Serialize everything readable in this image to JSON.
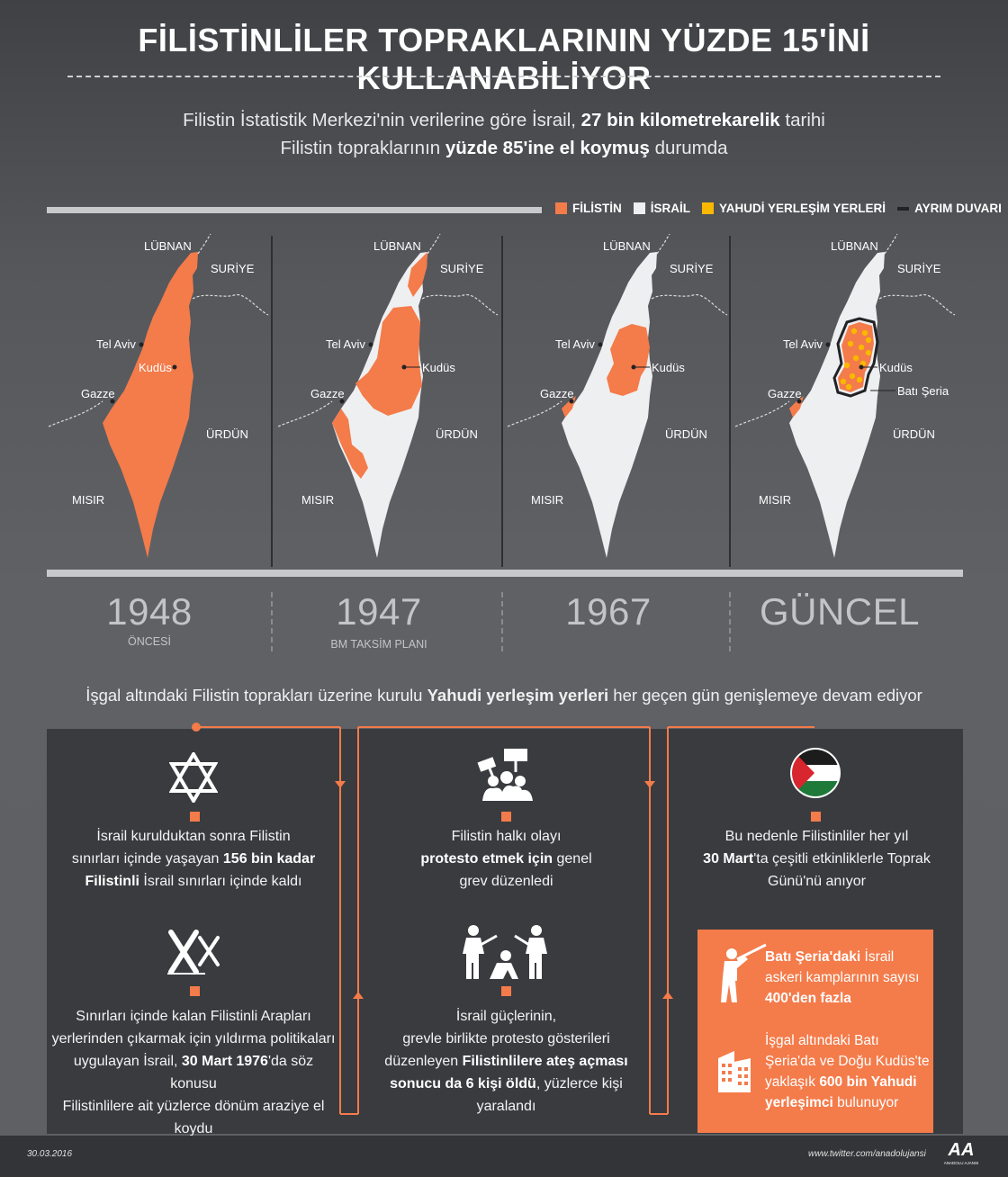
{
  "title": "FİLİSTİNLİLER TOPRAKLARININ YÜZDE 15'İNİ KULLANABİLİYOR",
  "intro": {
    "part1": "Filistin İstatistik Merkezi'nin verilerine göre İsrail, ",
    "bold1": "27 bin kilometrekarelik",
    "part2": " tarihi",
    "part3": "Filistin topraklarının ",
    "bold2": "yüzde 85'ine el koymuş",
    "part4": " durumda"
  },
  "legend": [
    {
      "label": "FİLİSTİN",
      "color": "#f47b4a"
    },
    {
      "label": "İSRAİL",
      "color": "#eeeff0"
    },
    {
      "label": "YAHUDİ YERLEŞİM YERLERİ",
      "color": "#f8b800"
    },
    {
      "label": "AYRIM DUVARI",
      "color": "#222326"
    }
  ],
  "map_labels": {
    "lubnan": "LÜBNAN",
    "suriye": "SURİYE",
    "tel_aviv": "Tel Aviv",
    "kudus": "Kudüs",
    "gazze": "Gazze",
    "urdun": "ÜRDÜN",
    "misir": "MISIR",
    "bati_seria": "Batı Şeria"
  },
  "periods": [
    {
      "year": "1948",
      "sub": "ÖNCESİ"
    },
    {
      "year": "1947",
      "sub": "BM TAKSİM PLANI"
    },
    {
      "year": "1967",
      "sub": ""
    },
    {
      "year": "GÜNCEL",
      "sub": ""
    }
  ],
  "settlement_line": {
    "part1": "İşgal altındaki Filistin toprakları üzerine kurulu ",
    "bold": "Yahudi yerleşim yerleri",
    "part2": " her geçen gün genişlemeye devam ediyor"
  },
  "timeline": {
    "col1_top": {
      "icon": "star-of-david-icon",
      "l1": "İsrail kurulduktan sonra Filistin",
      "l2": "sınırları içinde yaşayan ",
      "l2b": "156 bin kadar",
      "l3b": "Filistinli",
      "l3": " İsrail sınırları içinde kaldı"
    },
    "col1_bottom": {
      "icon": "barbed-wire-icon",
      "l1": "Sınırları içinde kalan Filistinli Arapları",
      "l2": "yerlerinden çıkarmak için yıldırma politikaları",
      "l3": "uygulayan İsrail, ",
      "l3b": "30 Mart 1976",
      "l3c": "'da söz konusu",
      "l4": "Filistinlilere ait yüzlerce dönüm araziye el",
      "l5": "koydu"
    },
    "col2_top": {
      "icon": "protest-icon",
      "l1": "Filistin halkı olayı",
      "l2b": "protesto etmek için",
      "l2": " genel",
      "l3": "grev düzenledi"
    },
    "col2_bottom": {
      "icon": "soldiers-icon",
      "l1": "İsrail güçlerinin,",
      "l2": "grevle birlikte protesto gösterileri",
      "l3": "düzenleyen ",
      "l3b": "Filistinlilere ateş açması",
      "l4b": "sonucu da 6 kişi öldü",
      "l4": ", yüzlerce kişi",
      "l5": "yaralandı"
    },
    "col3_top": {
      "icon": "palestine-flag-icon",
      "l1": "Bu nedenle Filistinliler her yıl",
      "l2b": "30 Mart",
      "l2": "'ta çeşitli etkinliklerle Toprak",
      "l3": "Günü'nü anıyor"
    },
    "orange_box": {
      "item1": {
        "icon": "soldier-icon",
        "l1b": "Batı Şeria'daki",
        "l1": " İsrail",
        "l2": "askeri kamplarının sayısı",
        "l3b": "400'den fazla"
      },
      "item2": {
        "icon": "building-icon",
        "l1": "İşgal altındaki Batı",
        "l2": "Şeria'da ve Doğu Kudüs'te",
        "l3": "yaklaşık ",
        "l3b": "600 bin Yahudi",
        "l4b": "yerleşimci",
        "l4": " bulunuyor"
      }
    }
  },
  "footer": {
    "date": "30.03.2016",
    "twitter": "www.twitter.com/anadolujansi",
    "logo_text": "AA",
    "logo_sub": "ANADOLU AJANSI"
  },
  "colors": {
    "orange": "#f47b4a",
    "israel": "#eeeff0",
    "settlement": "#f8b800",
    "wall": "#222326",
    "panel": "#3a3b3f"
  }
}
